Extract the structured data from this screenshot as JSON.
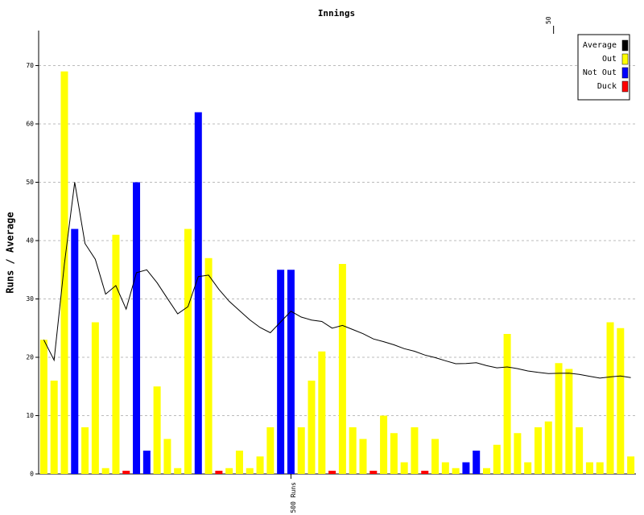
{
  "chart_data": {
    "type": "bar",
    "title": "Innings",
    "ylabel": "Runs / Average",
    "categories": [
      null,
      null,
      null,
      null,
      null,
      null,
      null,
      null,
      null,
      null,
      null,
      null,
      null,
      null,
      null,
      null,
      null,
      null,
      null,
      null,
      null,
      null,
      null,
      null,
      null,
      null,
      null,
      null,
      null,
      null,
      null,
      null,
      null,
      null,
      null,
      null,
      null,
      null,
      null,
      null,
      null,
      null,
      null,
      null,
      null,
      null,
      null,
      null,
      null,
      null,
      null,
      null,
      null,
      null,
      null,
      null,
      null,
      null
    ],
    "series": [
      {
        "name": "Average",
        "color": "#000000",
        "type": "line",
        "values": [
          23,
          19.5,
          36,
          50,
          39.5,
          36.8,
          30.83,
          32.29,
          28.25,
          34.5,
          35,
          32.78,
          30.1,
          27.45,
          28.67,
          33.83,
          34.08,
          31.64,
          29.6,
          28,
          26.41,
          25.11,
          24.21,
          26.05,
          27.89,
          26.9,
          26.38,
          26.14,
          25,
          25.46,
          24.76,
          24.04,
          23.15,
          22.68,
          22.14,
          21.47,
          21.03,
          20.38,
          19.94,
          19.41,
          18.89,
          18.94,
          19.06,
          18.56,
          18.19,
          18.34,
          18.05,
          17.65,
          17.41,
          17.21,
          17.26,
          17.27,
          17.07,
          16.74,
          16.43,
          16.63,
          16.8,
          16.52
        ]
      },
      {
        "name": "Out",
        "color": "#ffff00",
        "values": [
          23,
          16,
          69,
          null,
          8,
          26,
          1,
          41,
          null,
          null,
          null,
          15,
          6,
          1,
          42,
          null,
          37,
          null,
          1,
          4,
          1,
          3,
          8,
          null,
          null,
          8,
          16,
          21,
          null,
          36,
          8,
          6,
          null,
          10,
          7,
          2,
          8,
          null,
          6,
          2,
          1,
          null,
          null,
          1,
          5,
          24,
          7,
          2,
          8,
          9,
          19,
          18,
          8,
          2,
          2,
          26,
          25,
          3
        ]
      },
      {
        "name": "Not Out",
        "color": "#0000ff",
        "values": [
          null,
          null,
          null,
          42,
          null,
          null,
          null,
          null,
          null,
          50,
          4,
          null,
          null,
          null,
          null,
          62,
          null,
          null,
          null,
          null,
          null,
          null,
          null,
          35,
          35,
          null,
          null,
          null,
          null,
          null,
          null,
          null,
          null,
          null,
          null,
          null,
          null,
          null,
          null,
          null,
          null,
          2,
          4,
          null,
          null,
          null,
          null,
          null,
          null,
          null,
          null,
          null,
          null,
          null,
          null,
          null,
          null,
          null
        ]
      },
      {
        "name": "Duck",
        "color": "#ff0000",
        "values": [
          null,
          null,
          null,
          null,
          null,
          null,
          null,
          null,
          0,
          null,
          null,
          null,
          null,
          null,
          null,
          null,
          null,
          0,
          null,
          null,
          null,
          null,
          null,
          null,
          null,
          null,
          null,
          null,
          0,
          null,
          null,
          null,
          0,
          null,
          null,
          null,
          null,
          0,
          null,
          null,
          null,
          null,
          null,
          null,
          null,
          null,
          null,
          null,
          null,
          null,
          null,
          null,
          null,
          null,
          null,
          null,
          null,
          null
        ]
      }
    ],
    "ylim": [
      0,
      76
    ],
    "yticks": [
      0,
      10,
      20,
      30,
      40,
      50,
      60,
      70
    ],
    "grid": true,
    "x2ticks": [
      50
    ],
    "xticks": [
      {
        "value": 500,
        "label": "500 Runs"
      }
    ],
    "legend": "top-right"
  }
}
